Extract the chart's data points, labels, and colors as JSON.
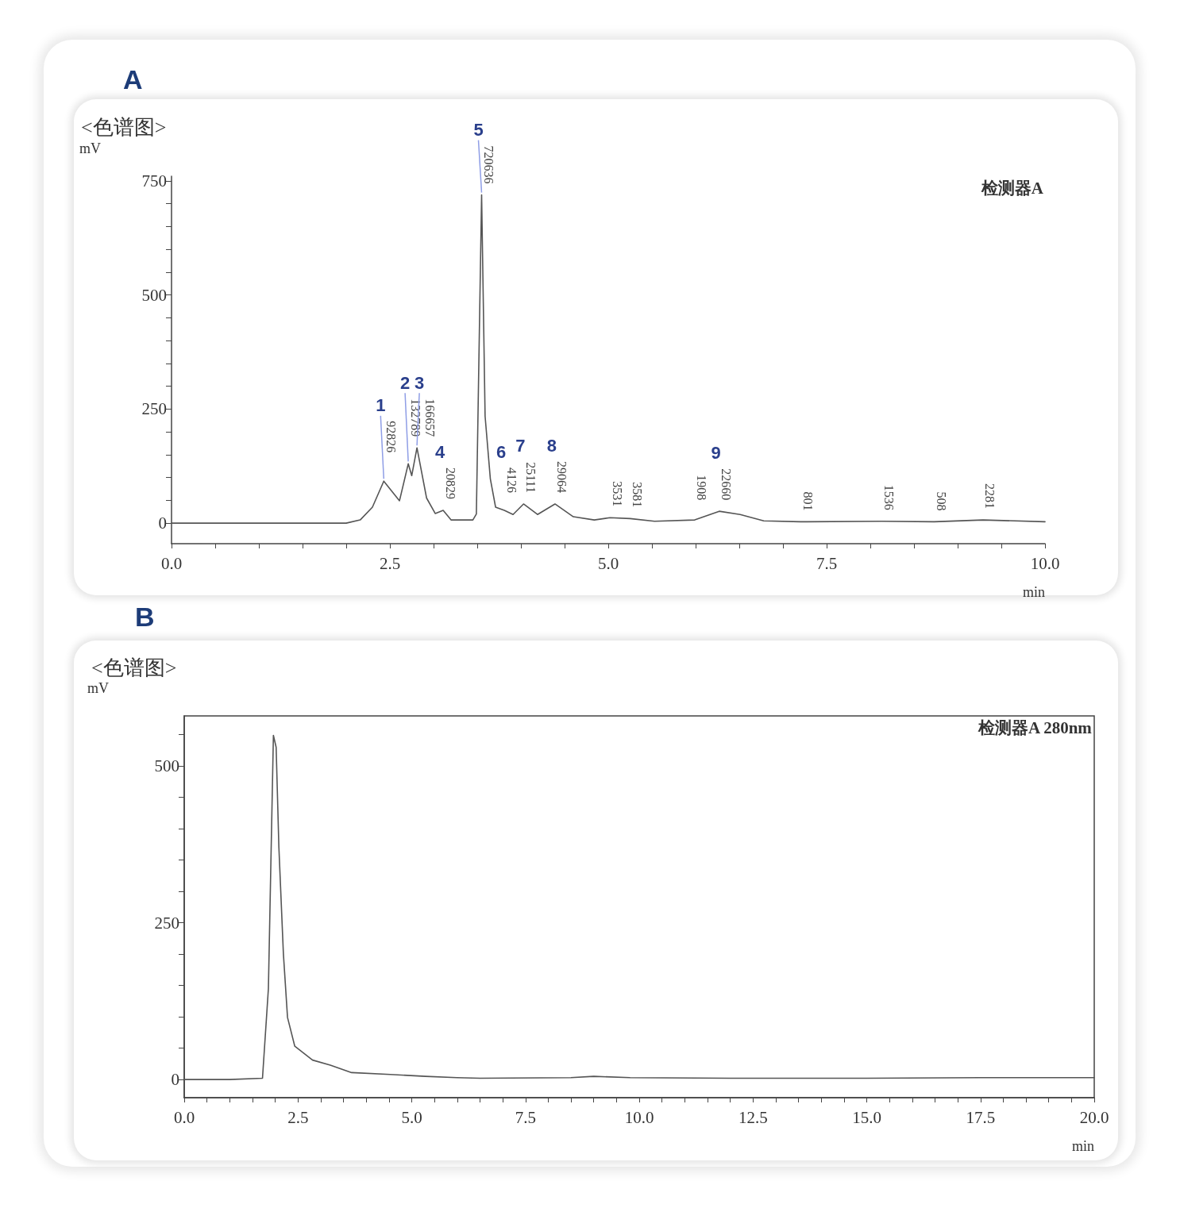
{
  "chart_data": [
    {
      "type": "line",
      "title": "A",
      "subtitle": "<色谱图>",
      "ylabel": "mV",
      "xlabel": "min",
      "x": [
        0,
        1.0,
        2.0,
        2.16,
        2.3,
        2.43,
        2.61,
        2.71,
        2.75,
        2.81,
        2.92,
        3.02,
        3.11,
        3.2,
        3.45,
        3.49,
        3.55,
        3.59,
        3.65,
        3.71,
        3.81,
        3.91,
        4.03,
        4.19,
        4.39,
        4.6,
        4.84,
        5.02,
        5.25,
        5.53,
        5.99,
        6.27,
        6.51,
        6.78,
        7.2,
        8.13,
        8.73,
        9.29,
        10.0
      ],
      "series": [
        {
          "color": "#555555",
          "values": [
            0,
            0,
            0,
            7,
            35,
            92,
            49,
            130,
            104,
            165,
            55,
            21,
            28,
            7,
            7,
            20,
            719,
            234,
            97,
            35,
            28,
            19,
            42,
            19,
            42,
            14,
            7,
            12,
            10,
            4,
            7,
            26,
            19,
            5,
            3,
            4,
            3,
            7,
            3
          ]
        }
      ],
      "xlim": [
        0,
        10
      ],
      "ylim": [
        -45,
        760
      ],
      "xticks": [
        {
          "value": 0,
          "label": "0.0"
        },
        {
          "value": 0.5,
          "label": null
        },
        {
          "value": 1,
          "label": null
        },
        {
          "value": 1.5,
          "label": null
        },
        {
          "value": 2,
          "label": null
        },
        {
          "value": 2.5,
          "label": "2.5"
        },
        {
          "value": 3,
          "label": null
        },
        {
          "value": 3.5,
          "label": null
        },
        {
          "value": 4,
          "label": null
        },
        {
          "value": 4.5,
          "label": null
        },
        {
          "value": 5,
          "label": "5.0"
        },
        {
          "value": 5.5,
          "label": null
        },
        {
          "value": 6,
          "label": null
        },
        {
          "value": 6.5,
          "label": null
        },
        {
          "value": 7,
          "label": null
        },
        {
          "value": 7.5,
          "label": "7.5"
        },
        {
          "value": 8,
          "label": null
        },
        {
          "value": 8.5,
          "label": null
        },
        {
          "value": 9,
          "label": null
        },
        {
          "value": 9.5,
          "label": null
        },
        {
          "value": 10,
          "label": "10.0"
        }
      ],
      "yticks": [
        0,
        {
          "value": 50,
          "label": null
        },
        {
          "value": 100,
          "label": null
        },
        {
          "value": 150,
          "label": null
        },
        {
          "value": 200,
          "label": null
        },
        250,
        {
          "value": 300,
          "label": null
        },
        {
          "value": 350,
          "label": null
        },
        {
          "value": 400,
          "label": null
        },
        {
          "value": 450,
          "label": null
        },
        500,
        {
          "value": 550,
          "label": null
        },
        {
          "value": 600,
          "label": null
        },
        {
          "value": 650,
          "label": null
        },
        {
          "value": 700,
          "label": null
        },
        750
      ],
      "annotations": [
        "检测器A",
        {
          "text": "1",
          "x": 2.43,
          "y": 92
        },
        {
          "text": "2",
          "x": 2.71,
          "y": 130
        },
        {
          "text": "3",
          "x": 2.81,
          "y": 165
        },
        {
          "text": "4",
          "x": 3.11,
          "y": 28
        },
        {
          "text": "5",
          "x": 3.55,
          "y": 719
        },
        {
          "text": "6",
          "x": 3.81,
          "y": 28
        },
        {
          "text": "7",
          "x": 4.03,
          "y": 42
        },
        {
          "text": "8",
          "x": 4.39,
          "y": 42
        },
        {
          "text": "9",
          "x": 6.27,
          "y": 26
        },
        {
          "text": "92826",
          "x": 2.43,
          "y": 92
        },
        {
          "text": "132789",
          "x": 2.71,
          "y": 130
        },
        {
          "text": "166657",
          "x": 2.81,
          "y": 165
        },
        {
          "text": "20829",
          "x": 3.11,
          "y": 28
        },
        {
          "text": "720636",
          "x": 3.55,
          "y": 719
        },
        {
          "text": "4126",
          "x": 3.81,
          "y": 28
        },
        {
          "text": "25111",
          "x": 4.03,
          "y": 42
        },
        {
          "text": "29064",
          "x": 4.39,
          "y": 42
        },
        {
          "text": "3531",
          "x": 5.02,
          "y": 12
        },
        {
          "text": "3581",
          "x": 5.25,
          "y": 10
        },
        {
          "text": "1908",
          "x": 5.99,
          "y": 7
        },
        {
          "text": "22660",
          "x": 6.27,
          "y": 26
        },
        {
          "text": "801",
          "x": 7.2,
          "y": 3
        },
        {
          "text": "1536",
          "x": 8.13,
          "y": 4
        },
        {
          "text": "508",
          "x": 8.73,
          "y": 3
        },
        {
          "text": "2281",
          "x": 9.29,
          "y": 7
        }
      ]
    },
    {
      "type": "line",
      "title": "B",
      "subtitle": "<色谱图>",
      "ylabel": "mV",
      "xlabel": "min",
      "x": [
        0,
        1.0,
        1.72,
        1.85,
        1.96,
        2.02,
        2.08,
        2.18,
        2.27,
        2.43,
        2.82,
        3.21,
        3.68,
        4.53,
        5.3,
        5.99,
        6.5,
        8.5,
        9.0,
        9.8,
        12.0,
        15.0,
        17.5,
        20.0
      ],
      "series": [
        {
          "color": "#555555",
          "values": [
            0,
            0,
            2,
            145,
            549,
            530,
            371,
            200,
            99,
            53,
            31,
            23,
            11,
            8,
            5,
            3,
            2,
            3,
            5,
            3,
            2,
            2,
            3,
            3
          ]
        }
      ],
      "xlim": [
        0,
        20
      ],
      "ylim": [
        -29,
        580
      ],
      "xticks": [
        {
          "value": 0,
          "label": "0.0"
        },
        {
          "value": 0.5,
          "label": null
        },
        {
          "value": 1,
          "label": null
        },
        {
          "value": 1.5,
          "label": null
        },
        {
          "value": 2,
          "label": null
        },
        {
          "value": 2.5,
          "label": "2.5"
        },
        {
          "value": 3,
          "label": null
        },
        {
          "value": 3.5,
          "label": null
        },
        {
          "value": 4,
          "label": null
        },
        {
          "value": 4.5,
          "label": null
        },
        {
          "value": 5,
          "label": "5.0"
        },
        {
          "value": 5.5,
          "label": null
        },
        {
          "value": 6,
          "label": null
        },
        {
          "value": 6.5,
          "label": null
        },
        {
          "value": 7,
          "label": null
        },
        {
          "value": 7.5,
          "label": "7.5"
        },
        {
          "value": 8,
          "label": null
        },
        {
          "value": 8.5,
          "label": null
        },
        {
          "value": 9,
          "label": null
        },
        {
          "value": 9.5,
          "label": null
        },
        {
          "value": 10,
          "label": "10.0"
        },
        {
          "value": 10.5,
          "label": null
        },
        {
          "value": 11,
          "label": null
        },
        {
          "value": 11.5,
          "label": null
        },
        {
          "value": 12,
          "label": null
        },
        {
          "value": 12.5,
          "label": "12.5"
        },
        {
          "value": 13,
          "label": null
        },
        {
          "value": 13.5,
          "label": null
        },
        {
          "value": 14,
          "label": null
        },
        {
          "value": 14.5,
          "label": null
        },
        {
          "value": 15,
          "label": "15.0"
        },
        {
          "value": 15.5,
          "label": null
        },
        {
          "value": 16,
          "label": null
        },
        {
          "value": 16.5,
          "label": null
        },
        {
          "value": 17,
          "label": null
        },
        {
          "value": 17.5,
          "label": "17.5"
        },
        {
          "value": 18,
          "label": null
        },
        {
          "value": 18.5,
          "label": null
        },
        {
          "value": 19,
          "label": null
        },
        {
          "value": 19.5,
          "label": null
        },
        {
          "value": 20,
          "label": "20.0"
        }
      ],
      "yticks": [
        0,
        {
          "value": 50,
          "label": null
        },
        {
          "value": 100,
          "label": null
        },
        {
          "value": 150,
          "label": null
        },
        {
          "value": 200,
          "label": null
        },
        250,
        {
          "value": 300,
          "label": null
        },
        {
          "value": 350,
          "label": null
        },
        {
          "value": 400,
          "label": null
        },
        {
          "value": 450,
          "label": null
        },
        500,
        {
          "value": 550,
          "label": null
        }
      ],
      "annotations": [
        "检测器A 280nm"
      ]
    }
  ]
}
